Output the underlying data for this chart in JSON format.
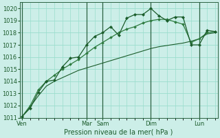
{
  "background_color": "#cceee8",
  "grid_color": "#99ddcc",
  "line_color1": "#1a5c2a",
  "line_color2": "#2d7a3e",
  "line_color3": "#1a5c2a",
  "xlabel": "Pression niveau de la mer( hPa )",
  "ylim": [
    1011,
    1020.5
  ],
  "yticks": [
    1011,
    1012,
    1013,
    1014,
    1015,
    1016,
    1017,
    1018,
    1019,
    1020
  ],
  "num_points": 25,
  "day_labels": [
    "Ven",
    "Mar",
    "Sam",
    "Dim",
    "Lun"
  ],
  "day_positions_x": [
    0,
    8,
    10,
    16,
    22
  ],
  "series1": [
    1011.1,
    1011.8,
    1013.1,
    1014.0,
    1014.1,
    1015.2,
    1015.9,
    1016.0,
    1017.0,
    1017.7,
    1018.0,
    1018.5,
    1017.8,
    1019.2,
    1019.5,
    1019.5,
    1020.0,
    1019.4,
    1019.0,
    1019.3,
    1019.3,
    1017.0,
    1017.0,
    1018.2,
    1018.1
  ],
  "series2": [
    1011.1,
    1012.0,
    1013.3,
    1014.0,
    1014.5,
    1015.0,
    1015.4,
    1015.8,
    1016.3,
    1016.8,
    1017.2,
    1017.6,
    1018.0,
    1018.3,
    1018.5,
    1018.8,
    1019.0,
    1019.1,
    1019.1,
    1018.9,
    1018.7,
    1017.2,
    1017.5,
    1018.0,
    1018.1
  ],
  "series3": [
    1011.1,
    1011.9,
    1012.8,
    1013.6,
    1014.0,
    1014.3,
    1014.6,
    1014.9,
    1015.1,
    1015.3,
    1015.5,
    1015.7,
    1015.9,
    1016.1,
    1016.3,
    1016.5,
    1016.7,
    1016.85,
    1016.95,
    1017.05,
    1017.15,
    1017.3,
    1017.5,
    1017.9,
    1018.0
  ],
  "xlabel_fontsize": 7,
  "tick_fontsize": 6
}
